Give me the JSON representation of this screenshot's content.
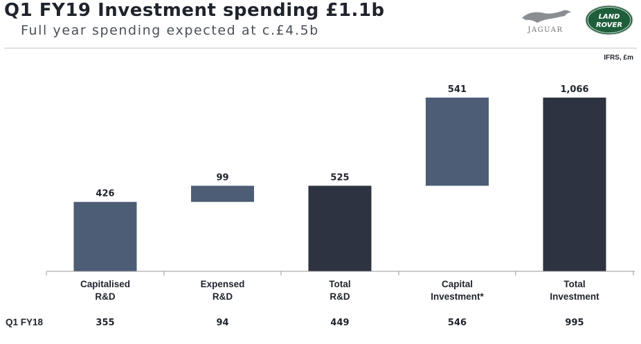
{
  "header": {
    "title": "Q1 FY19 Investment spending £1.1b",
    "subtitle": "Full year spending expected at c.£4.5b",
    "units": "IFRS, £m"
  },
  "logos": {
    "jaguar_text": "JAGUAR",
    "land_rover_line1": "LAND",
    "land_rover_line2": "ROVER"
  },
  "colors": {
    "component_bar": "#4d5d75",
    "total_bar": "#2e3342",
    "land_rover_green": "#1e5e3a"
  },
  "chart_data": {
    "type": "bar",
    "subtype": "waterfall",
    "categories": [
      [
        "Capitalised",
        "R&D"
      ],
      [
        "Expensed",
        "R&D"
      ],
      [
        "Total",
        "R&D"
      ],
      [
        "Capital",
        "Investment*"
      ],
      [
        "Total",
        "Investment"
      ]
    ],
    "values": [
      426,
      99,
      525,
      541,
      1066
    ],
    "value_labels": [
      "426",
      "99",
      "525",
      "541",
      "1,066"
    ],
    "bar_kind": [
      "component",
      "component",
      "total",
      "component",
      "total"
    ],
    "bar_base": [
      0,
      426,
      0,
      525,
      0
    ],
    "ylim": [
      0,
      1066
    ],
    "grid": false,
    "legend": "none",
    "comparison_row": {
      "label": "Q1 FY18",
      "values": [
        "355",
        "94",
        "449",
        "546",
        "995"
      ]
    }
  }
}
